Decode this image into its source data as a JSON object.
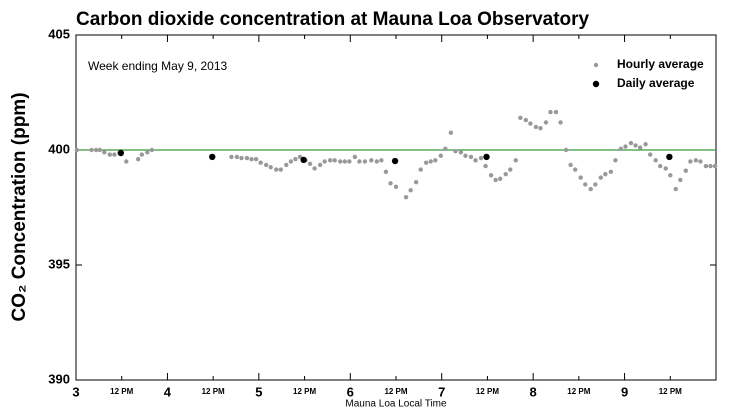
{
  "chart_data": {
    "type": "scatter",
    "title": "Carbon dioxide concentration at Mauna Loa Observatory",
    "annotation": "Week ending May 9, 2013",
    "x_label": "Mauna Loa Local Time",
    "y_label": "CO₂ Concentration (ppm)",
    "xlim": [
      3,
      10
    ],
    "ylim": [
      390,
      405
    ],
    "xticks": [
      3,
      {
        "value": 3.5,
        "label": "12 PM"
      },
      4,
      {
        "value": 4.5,
        "label": "12 PM"
      },
      5,
      {
        "value": 5.5,
        "label": "12 PM"
      },
      6,
      {
        "value": 6.5,
        "label": "12 PM"
      },
      7,
      {
        "value": 7.5,
        "label": "12 PM"
      },
      8,
      {
        "value": 8.5,
        "label": "12 PM"
      },
      9,
      {
        "value": 9.5,
        "label": "12 PM"
      }
    ],
    "yticks": [
      390,
      395,
      400,
      405
    ],
    "grid": false,
    "legend": "upper right",
    "reference_line": {
      "value": 400,
      "color": "#3a9a3a"
    },
    "series": [
      {
        "name": "Hourly average",
        "color": "#999999",
        "x": [
          3.01,
          3.17,
          3.22,
          3.26,
          3.31,
          3.37,
          3.42,
          3.55,
          3.68,
          3.72,
          3.78,
          3.83,
          4.7,
          4.76,
          4.81,
          4.87,
          4.92,
          4.97,
          5.02,
          5.08,
          5.13,
          5.19,
          5.24,
          5.3,
          5.35,
          5.4,
          5.45,
          5.51,
          5.56,
          5.61,
          5.67,
          5.72,
          5.78,
          5.83,
          5.89,
          5.94,
          5.99,
          6.05,
          6.1,
          6.16,
          6.23,
          6.29,
          6.34,
          6.39,
          6.44,
          6.5,
          6.61,
          6.66,
          6.72,
          6.77,
          6.83,
          6.88,
          6.93,
          6.99,
          7.04,
          7.1,
          7.15,
          7.21,
          7.26,
          7.32,
          7.37,
          7.43,
          7.48,
          7.54,
          7.59,
          7.64,
          7.7,
          7.75,
          7.81,
          7.86,
          7.92,
          7.97,
          8.03,
          8.08,
          8.14,
          8.19,
          8.25,
          8.3,
          8.36,
          8.41,
          8.46,
          8.52,
          8.57,
          8.63,
          8.68,
          8.74,
          8.79,
          8.85,
          8.9,
          8.96,
          9.01,
          9.07,
          9.12,
          9.17,
          9.23,
          9.28,
          9.34,
          9.39,
          9.45,
          9.5,
          9.56,
          9.61,
          9.67,
          9.72,
          9.78,
          9.83,
          9.89,
          9.94,
          9.99
        ],
        "values": [
          400.0,
          400.0,
          400.0,
          400.0,
          399.9,
          399.8,
          399.8,
          399.5,
          399.6,
          399.8,
          399.9,
          400.0,
          399.7,
          399.7,
          399.65,
          399.65,
          399.6,
          399.6,
          399.45,
          399.35,
          399.25,
          399.15,
          399.15,
          399.35,
          399.5,
          399.6,
          399.7,
          399.55,
          399.4,
          399.2,
          399.35,
          399.5,
          399.55,
          399.55,
          399.5,
          399.5,
          399.5,
          399.7,
          399.5,
          399.5,
          399.55,
          399.5,
          399.55,
          399.05,
          398.55,
          398.4,
          397.95,
          398.25,
          398.6,
          399.15,
          399.45,
          399.5,
          399.55,
          399.75,
          400.05,
          400.75,
          399.95,
          399.9,
          399.75,
          399.7,
          399.55,
          399.65,
          399.3,
          398.9,
          398.7,
          398.75,
          398.95,
          399.15,
          399.55,
          401.4,
          401.3,
          401.15,
          401.0,
          400.95,
          401.2,
          401.65,
          401.65,
          401.2,
          400.0,
          399.35,
          399.15,
          398.8,
          398.5,
          398.3,
          398.5,
          398.8,
          398.95,
          399.05,
          399.55,
          400.05,
          400.15,
          400.3,
          400.2,
          400.1,
          400.25,
          399.8,
          399.55,
          399.3,
          399.2,
          398.9,
          398.3,
          398.7,
          399.1,
          399.5,
          399.55,
          399.5,
          399.3,
          399.3,
          399.3
        ]
      },
      {
        "name": "Daily average",
        "color": "#000000",
        "x": [
          3.49,
          4.49,
          5.49,
          6.49,
          7.49,
          9.49
        ],
        "values": [
          399.87,
          399.7,
          399.57,
          399.52,
          399.7,
          399.7
        ]
      }
    ]
  }
}
